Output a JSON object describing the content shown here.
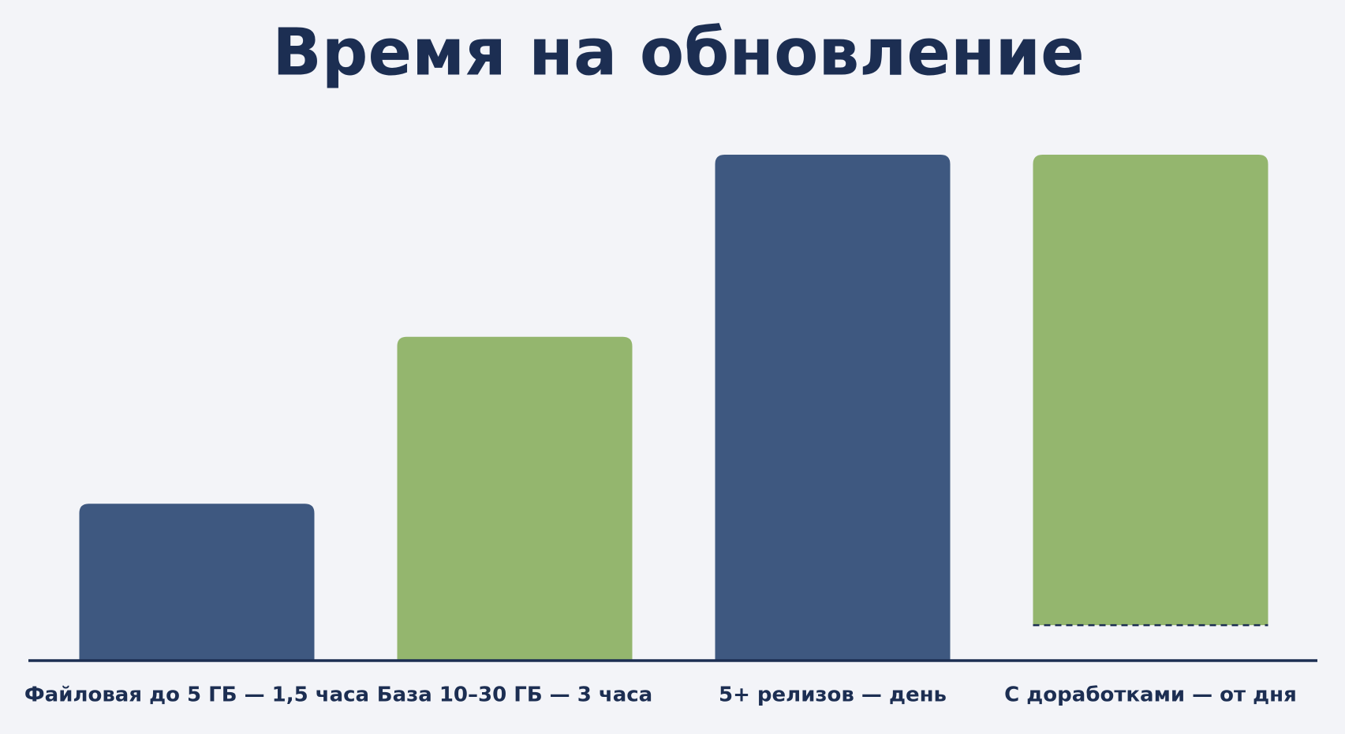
{
  "chart_data": {
    "type": "bar",
    "title": "Время на обновление",
    "categories": [
      "Файловая до 5 ГБ — 1,5 часа",
      "База 10–30 ГБ — 3 часа",
      "5+ релизов — день",
      "С доработками — от дня"
    ],
    "values": [
      31,
      64,
      100,
      100
    ],
    "starts": [
      0,
      0,
      0,
      7
    ],
    "colors": [
      "#3e5880",
      "#94b66e",
      "#3e5880",
      "#94b66e"
    ],
    "ylim": [
      0,
      100
    ]
  }
}
